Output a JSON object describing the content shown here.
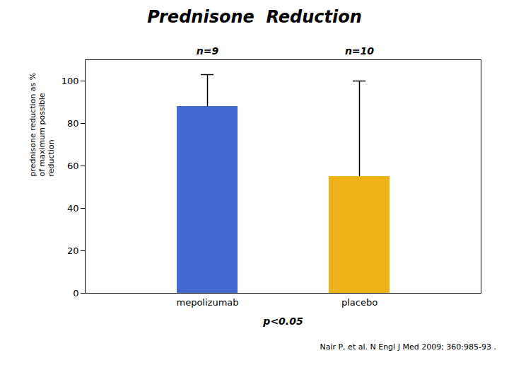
{
  "chart_data": {
    "type": "bar",
    "title": "Prednisone  Reduction",
    "categories": [
      "mepolizumab",
      "placebo"
    ],
    "values": [
      88,
      55
    ],
    "error_lower": [
      0,
      0
    ],
    "error_upper": [
      15,
      45
    ],
    "ylabel": "prednisone reduction as %\nof maximum possible\nreduction",
    "ylim": [
      0,
      110
    ],
    "yticks": [
      0,
      20,
      40,
      60,
      80,
      100
    ],
    "n_labels": [
      "n=9",
      "n=10"
    ],
    "annotations": [
      "p<0.05"
    ],
    "caption": "Nair P, et al. N Engl J Med 2009; 360:985-93 .",
    "grid": false
  }
}
